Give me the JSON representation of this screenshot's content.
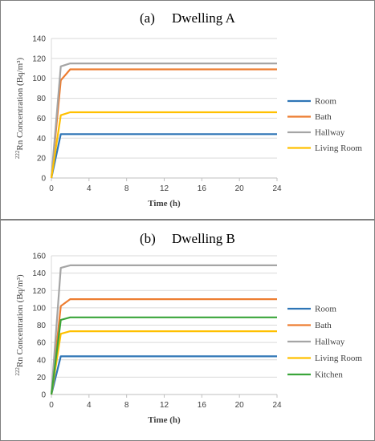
{
  "chart_data": [
    {
      "type": "line",
      "label": "(a)",
      "title": "Dwelling A",
      "xlabel": "Time (h)",
      "ylabel_sup": "222",
      "ylabel_rest": "Rn Concentration (Bq/m³)",
      "xlim": [
        0,
        24
      ],
      "ylim": [
        0,
        140
      ],
      "xticks": [
        0,
        4,
        8,
        12,
        16,
        20,
        24
      ],
      "yticks": [
        0,
        20,
        40,
        60,
        80,
        100,
        120,
        140
      ],
      "grid": "horizontal",
      "legend_position": "right",
      "series": [
        {
          "name": "Room",
          "color": "#2e75b6",
          "x": [
            0,
            1,
            2,
            24
          ],
          "y": [
            0,
            44,
            44,
            44
          ]
        },
        {
          "name": "Bath",
          "color": "#ed7d31",
          "x": [
            0,
            1,
            2,
            24
          ],
          "y": [
            0,
            98,
            109,
            109
          ]
        },
        {
          "name": "Hallway",
          "color": "#a5a5a5",
          "x": [
            0,
            1,
            2,
            24
          ],
          "y": [
            0,
            112,
            115,
            115
          ]
        },
        {
          "name": "Living Room",
          "color": "#ffc000",
          "x": [
            0,
            1,
            2,
            24
          ],
          "y": [
            0,
            63,
            66,
            66
          ]
        }
      ]
    },
    {
      "type": "line",
      "label": "(b)",
      "title": "Dwelling B",
      "xlabel": "Time (h)",
      "ylabel_sup": "222",
      "ylabel_rest": "Rn Concentration (Bq/m³)",
      "xlim": [
        0,
        24
      ],
      "ylim": [
        0,
        160
      ],
      "xticks": [
        0,
        4,
        8,
        12,
        16,
        20,
        24
      ],
      "yticks": [
        0,
        20,
        40,
        60,
        80,
        100,
        120,
        140,
        160
      ],
      "grid": "horizontal",
      "legend_position": "right",
      "series": [
        {
          "name": "Room",
          "color": "#2e75b6",
          "x": [
            0,
            1,
            2,
            24
          ],
          "y": [
            0,
            44,
            44,
            44
          ]
        },
        {
          "name": "Bath",
          "color": "#ed7d31",
          "x": [
            0,
            1,
            2,
            24
          ],
          "y": [
            0,
            102,
            110,
            110
          ]
        },
        {
          "name": "Hallway",
          "color": "#a5a5a5",
          "x": [
            0,
            1,
            2,
            24
          ],
          "y": [
            0,
            146,
            149,
            149
          ]
        },
        {
          "name": "Living Room",
          "color": "#ffc000",
          "x": [
            0,
            1,
            2,
            24
          ],
          "y": [
            0,
            70,
            73,
            73
          ]
        },
        {
          "name": "Kitchen",
          "color": "#3aa53a",
          "x": [
            0,
            1,
            2,
            24
          ],
          "y": [
            0,
            86,
            89,
            89
          ]
        }
      ]
    }
  ]
}
